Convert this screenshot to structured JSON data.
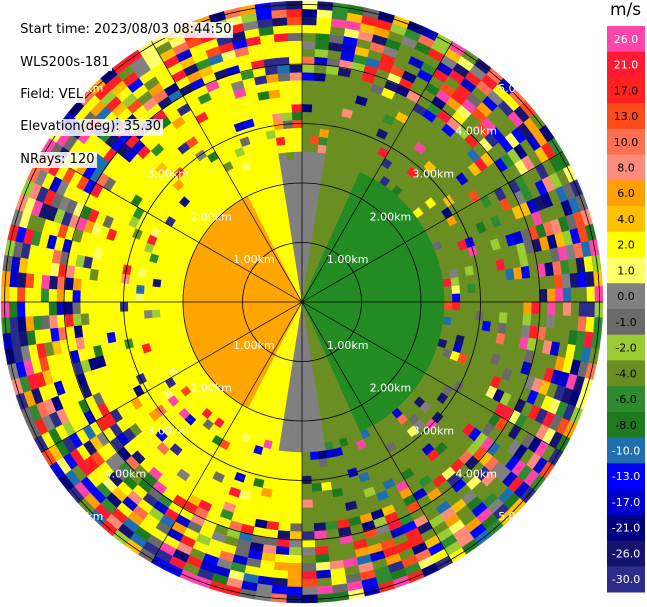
{
  "header": {
    "start_time": "Start time: 2023/08/03 08:44:50",
    "instrument": "WLS200s-181",
    "field": "Field: VEL",
    "elevation": "Elevation(deg): 35.30",
    "nrays": "NRays: 120"
  },
  "chart_data": {
    "type": "heatmap",
    "subtype": "polar PPI radar/lidar velocity scan",
    "units": "m/s",
    "field": "VEL",
    "colorbar": {
      "ticks": [
        "26.0",
        "21.0",
        "17.0",
        "13.0",
        "10.0",
        "8.0",
        "6.0",
        "4.0",
        "2.0",
        "1.0",
        "0.0",
        "-1.0",
        "-2.0",
        "-4.0",
        "-6.0",
        "-8.0",
        "-10.0",
        "-13.0",
        "-17.0",
        "-21.0",
        "-26.0",
        "-30.0"
      ],
      "colors": [
        "#ff44aa",
        "#ff1a33",
        "#ff2020",
        "#ff4a1a",
        "#ff7050",
        "#ff8c7a",
        "#ffa000",
        "#ffc000",
        "#ffff00",
        "#ffff66",
        "#808080",
        "#6a6a6a",
        "#9acd32",
        "#6b8e23",
        "#2e8b2e",
        "#1e7a1e",
        "#1f6fb0",
        "#0000ff",
        "#0000cd",
        "#000080",
        "#14146e",
        "#2b2b8a"
      ]
    },
    "range_rings_km": [
      1,
      2,
      3,
      4,
      5
    ],
    "range_ring_labels": [
      "1.00km",
      "2.00km",
      "3.00km",
      "4.00km",
      "5.00km"
    ],
    "n_rays": 120,
    "elevation_deg": 35.3,
    "colors": {
      "receding_near": "#ffa500",
      "receding_mid": "#ffff00",
      "zero": "#808080",
      "approaching_near": "#228b22",
      "approaching_mid": "#6b8e23"
    }
  }
}
